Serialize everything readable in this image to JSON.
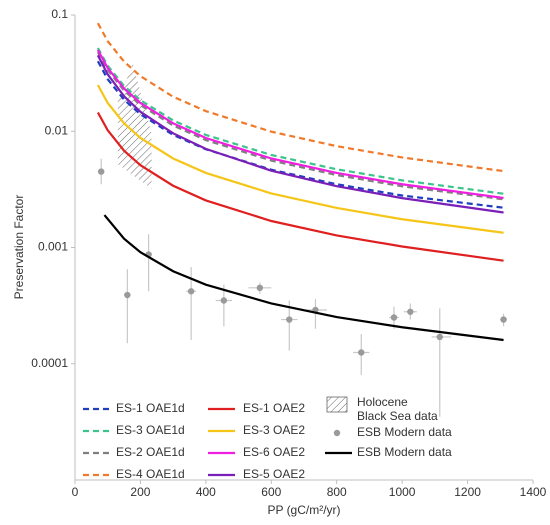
{
  "chart_data": {
    "type": "line",
    "xlabel": "PP (gC/m²/yr)",
    "ylabel": "Preservation Factor",
    "log_y": true,
    "xlim": [
      0,
      1400
    ],
    "ylim": [
      1e-05,
      0.1
    ],
    "xticks": [
      0,
      200,
      400,
      600,
      800,
      1000,
      1200,
      1400
    ],
    "yticks": [
      0.1,
      0.01,
      0.001,
      0.0001
    ],
    "x": [
      70,
      100,
      150,
      200,
      300,
      400,
      600,
      800,
      1000,
      1310
    ],
    "series": [
      {
        "name": "ES-1 OAE1d",
        "color": "#1f3fbf",
        "dash": true,
        "values": [
          0.04,
          0.028,
          0.0187,
          0.014,
          0.0093,
          0.007,
          0.00467,
          0.0035,
          0.0028,
          0.0022
        ]
      },
      {
        "name": "ES-3 OAE1d",
        "color": "#3cc48a",
        "dash": true,
        "values": [
          0.052,
          0.0366,
          0.0245,
          0.0185,
          0.0124,
          0.0093,
          0.00625,
          0.00471,
          0.00378,
          0.0029
        ]
      },
      {
        "name": "ES-2 OAE1d",
        "color": "#7f7f7f",
        "dash": true,
        "values": [
          0.048,
          0.0336,
          0.0224,
          0.0168,
          0.0112,
          0.0084,
          0.0056,
          0.0042,
          0.00336,
          0.0026
        ]
      },
      {
        "name": "ES-4 OAE1d",
        "color": "#f07a2a",
        "dash": true,
        "values": [
          0.085,
          0.0595,
          0.0397,
          0.0298,
          0.0198,
          0.0149,
          0.00992,
          0.00744,
          0.00595,
          0.00454
        ]
      },
      {
        "name": "ES-1 OAE2",
        "color": "#e02020",
        "dash": false,
        "values": [
          0.0145,
          0.0102,
          0.0068,
          0.0051,
          0.0034,
          0.00254,
          0.00169,
          0.00127,
          0.00102,
          0.00077
        ]
      },
      {
        "name": "ES-3 OAE2",
        "color": "#f5c518",
        "dash": false,
        "values": [
          0.025,
          0.0175,
          0.0117,
          0.00875,
          0.00583,
          0.00438,
          0.00292,
          0.00219,
          0.00175,
          0.00134
        ]
      },
      {
        "name": "ES-6 OAE2",
        "color": "#ee1fe0",
        "dash": false,
        "values": [
          0.05,
          0.035,
          0.0233,
          0.0175,
          0.0117,
          0.00875,
          0.00583,
          0.00438,
          0.0035,
          0.00267
        ]
      },
      {
        "name": "ES-5 OAE2",
        "color": "#7a1fb8",
        "dash": false,
        "values": [
          0.045,
          0.0308,
          0.02,
          0.0147,
          0.0096,
          0.00705,
          0.00458,
          0.00337,
          0.00266,
          0.002
        ]
      },
      {
        "name": "ESB Modern data",
        "color": "#000000",
        "dash": false,
        "x": [
          90,
          150,
          200,
          300,
          400,
          600,
          800,
          1000,
          1310
        ],
        "values": [
          0.0019,
          0.00119,
          0.00091,
          0.000625,
          0.000479,
          0.00033,
          0.000252,
          0.000206,
          0.00016
        ]
      }
    ],
    "scatter": {
      "name": "ESB Modern data",
      "color": "#9a9a9a",
      "x": [
        80,
        160,
        225,
        355,
        455,
        565,
        655,
        735,
        875,
        975,
        1025,
        1115,
        1310
      ],
      "x_low": [
        70,
        150,
        215,
        340,
        430,
        530,
        630,
        705,
        850,
        960,
        1005,
        1090,
        1300
      ],
      "x_high": [
        90,
        170,
        235,
        370,
        480,
        600,
        680,
        770,
        900,
        990,
        1045,
        1150,
        1320
      ],
      "y": [
        0.0045,
        0.00039,
        0.00087,
        0.00042,
        0.00035,
        0.00045,
        0.00024,
        0.00029,
        0.000125,
        0.00025,
        0.00028,
        0.00017,
        0.00024
      ],
      "y_low": [
        0.0035,
        0.00015,
        0.00042,
        0.00016,
        0.00021,
        0.0004,
        0.00013,
        0.0002,
        8e-05,
        0.0002,
        0.00024,
        3.5e-05,
        0.00021
      ],
      "y_high": [
        0.0058,
        0.00065,
        0.0013,
        0.00068,
        0.00048,
        0.0005,
        0.00035,
        0.00036,
        0.00018,
        0.00031,
        0.00033,
        0.0003,
        0.00027
      ]
    },
    "hatch": {
      "label_lines": [
        "Holocene",
        "Black Sea data"
      ],
      "x": [
        131,
        177,
        234,
        234,
        131
      ],
      "y": [
        0.018,
        0.038,
        0.0096,
        0.0032,
        0.0052
      ]
    }
  }
}
